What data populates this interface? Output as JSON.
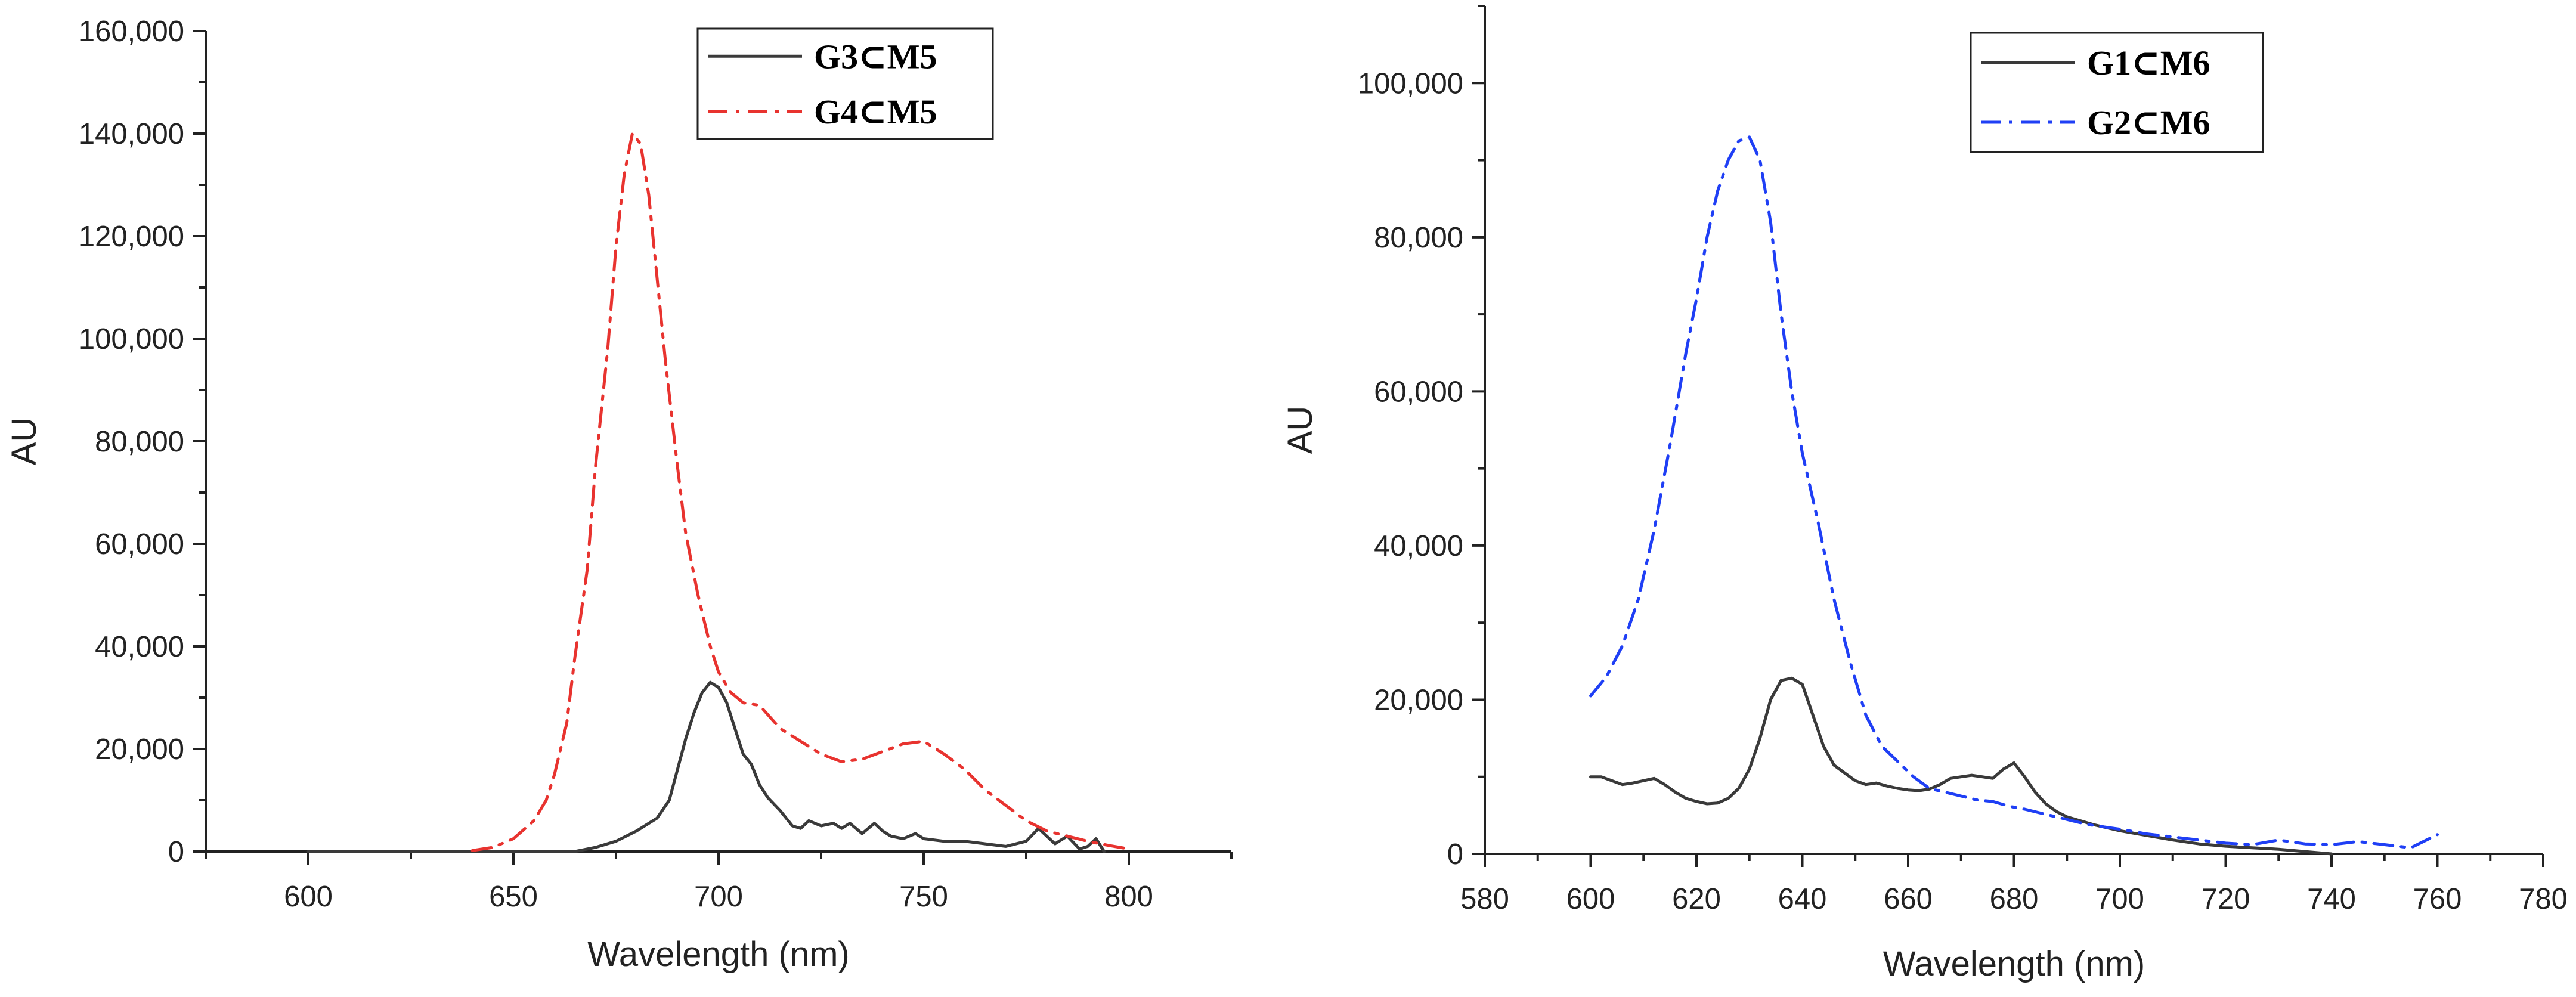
{
  "chart_data": [
    {
      "type": "line",
      "title": "",
      "xlabel": "Wavelength (nm)",
      "ylabel": "AU",
      "xlim": [
        575,
        825
      ],
      "ylim": [
        0,
        160000
      ],
      "xticks": [
        600,
        650,
        700,
        750,
        800
      ],
      "xtick_labels": [
        "600",
        "650",
        "700",
        "750",
        "800"
      ],
      "yticks": [
        0,
        20000,
        40000,
        60000,
        80000,
        100000,
        120000,
        140000,
        160000
      ],
      "ytick_labels": [
        "0",
        "20,000",
        "40,000",
        "60,000",
        "80,000",
        "100,000",
        "120,000",
        "140,000",
        "160,000"
      ],
      "legend_position": "top-right",
      "series": [
        {
          "name": "G3⊂M5",
          "color": "#3a3a3a",
          "style": "solid",
          "x": [
            600,
            610,
            620,
            630,
            640,
            650,
            660,
            665,
            670,
            675,
            680,
            685,
            688,
            690,
            692,
            694,
            696,
            698,
            700,
            702,
            704,
            706,
            708,
            710,
            712,
            715,
            718,
            720,
            722,
            725,
            728,
            730,
            732,
            735,
            738,
            740,
            742,
            745,
            748,
            750,
            755,
            760,
            765,
            770,
            775,
            778,
            780,
            782,
            785,
            788,
            790,
            792,
            794
          ],
          "y": [
            0,
            0,
            0,
            0,
            0,
            0,
            0,
            0,
            800,
            2000,
            4000,
            6500,
            10000,
            16000,
            22000,
            27000,
            31000,
            33000,
            32000,
            29000,
            24000,
            19000,
            17000,
            13000,
            10500,
            8000,
            5000,
            4500,
            6000,
            5000,
            5500,
            4500,
            5500,
            3500,
            5500,
            4000,
            3000,
            2500,
            3500,
            2500,
            2000,
            2000,
            1500,
            1000,
            2000,
            4500,
            3000,
            1500,
            3000,
            500,
            1000,
            2500,
            0
          ]
        },
        {
          "name": "G4⊂M5",
          "color": "#e8332f",
          "style": "dashdot",
          "x": [
            640,
            645,
            650,
            655,
            658,
            660,
            663,
            665,
            668,
            670,
            673,
            675,
            677,
            679,
            681,
            683,
            685,
            687,
            690,
            692,
            695,
            698,
            700,
            703,
            706,
            710,
            715,
            720,
            725,
            730,
            735,
            740,
            745,
            750,
            755,
            760,
            765,
            770,
            775,
            780,
            785,
            790,
            795,
            800
          ],
          "y": [
            200,
            800,
            2500,
            6000,
            10000,
            15000,
            25000,
            38000,
            55000,
            75000,
            98000,
            118000,
            132000,
            140000,
            138000,
            128000,
            112000,
            96000,
            75000,
            62000,
            50000,
            40000,
            35000,
            31000,
            29000,
            28500,
            24000,
            21500,
            19000,
            17500,
            18000,
            19500,
            21000,
            21500,
            19000,
            16000,
            12000,
            9000,
            6000,
            4000,
            3000,
            2000,
            1200,
            500
          ]
        }
      ]
    },
    {
      "type": "line",
      "title": "",
      "xlabel": "Wavelength (nm)",
      "ylabel": "AU",
      "xlim": [
        580,
        780
      ],
      "ylim": [
        0,
        110000
      ],
      "xticks": [
        580,
        600,
        620,
        640,
        660,
        680,
        700,
        720,
        740,
        760,
        780
      ],
      "xtick_labels": [
        "580",
        "600",
        "620",
        "640",
        "660",
        "680",
        "700",
        "720",
        "740",
        "760",
        "780"
      ],
      "yticks": [
        0,
        20000,
        40000,
        60000,
        80000,
        100000
      ],
      "ytick_labels": [
        "0",
        "20,000",
        "40,000",
        "60,000",
        "80,000",
        "100,000"
      ],
      "legend_position": "top-right",
      "series": [
        {
          "name": "G1⊂M6",
          "color": "#3a3a3a",
          "style": "solid",
          "x": [
            600,
            602,
            604,
            606,
            608,
            610,
            612,
            614,
            616,
            618,
            620,
            622,
            624,
            626,
            628,
            630,
            632,
            634,
            636,
            638,
            640,
            642,
            644,
            646,
            648,
            650,
            652,
            654,
            656,
            658,
            660,
            662,
            664,
            666,
            668,
            670,
            672,
            674,
            676,
            678,
            680,
            682,
            684,
            686,
            688,
            690,
            695,
            700,
            705,
            710,
            715,
            720,
            725,
            730,
            735,
            740
          ],
          "y": [
            10000,
            10000,
            9500,
            9000,
            9200,
            9500,
            9800,
            9000,
            8000,
            7200,
            6800,
            6500,
            6600,
            7200,
            8500,
            11000,
            15000,
            20000,
            22500,
            22800,
            22000,
            18000,
            14000,
            11500,
            10500,
            9500,
            9000,
            9200,
            8800,
            8500,
            8300,
            8200,
            8400,
            9000,
            9800,
            10000,
            10200,
            10000,
            9800,
            11000,
            11800,
            10000,
            8000,
            6500,
            5500,
            4800,
            3800,
            3000,
            2400,
            1800,
            1300,
            1000,
            800,
            600,
            300,
            0
          ]
        },
        {
          "name": "G2⊂M6",
          "color": "#1f3ff5",
          "style": "dashdot",
          "x": [
            600,
            603,
            606,
            609,
            612,
            615,
            618,
            620,
            622,
            624,
            626,
            628,
            630,
            632,
            634,
            636,
            638,
            640,
            643,
            646,
            649,
            652,
            655,
            658,
            661,
            664,
            667,
            670,
            673,
            676,
            679,
            682,
            685,
            688,
            691,
            694,
            697,
            700,
            705,
            710,
            715,
            720,
            725,
            730,
            735,
            740,
            745,
            750,
            755,
            760
          ],
          "y": [
            20500,
            23000,
            27000,
            33000,
            42000,
            53000,
            65000,
            72000,
            80000,
            86000,
            90000,
            92500,
            93000,
            90000,
            82000,
            70000,
            60000,
            52000,
            43000,
            33000,
            25000,
            18000,
            14000,
            12000,
            10000,
            8500,
            8000,
            7500,
            7000,
            6800,
            6200,
            5800,
            5300,
            4800,
            4300,
            3800,
            3500,
            3200,
            2600,
            2200,
            1800,
            1400,
            1200,
            1800,
            1300,
            1200,
            1600,
            1200,
            800,
            2500
          ]
        }
      ]
    }
  ]
}
